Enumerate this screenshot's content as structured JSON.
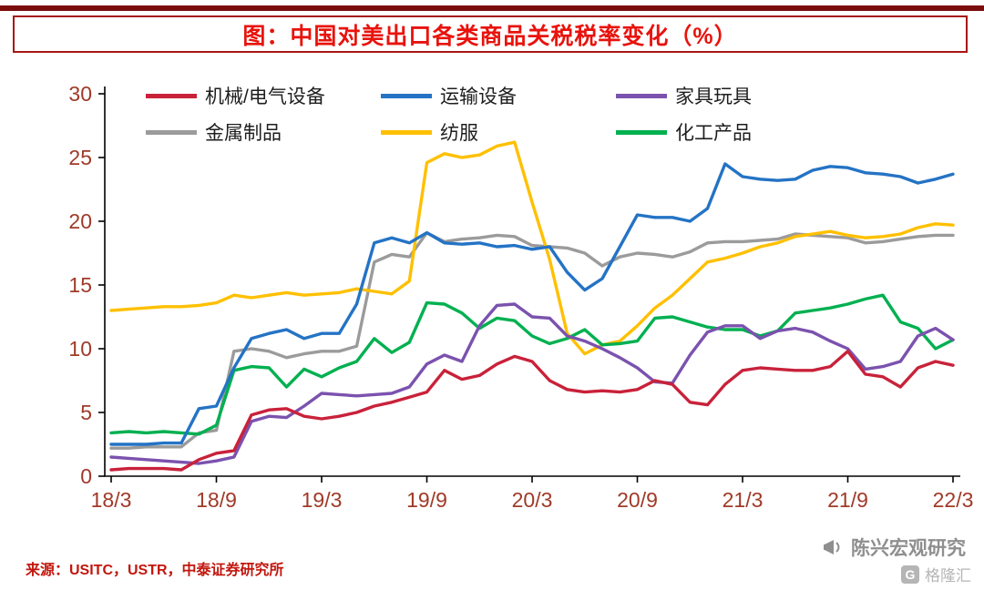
{
  "title": "图：中国对美出口各类商品关税税率变化（%）",
  "source_note": "来源：USITC，USTR，中泰证券研究所",
  "watermark": {
    "name": "陈兴宏观研究",
    "logo_letter": "G",
    "logo_text": "格隆汇"
  },
  "colors": {
    "title_red": "#e8130c",
    "frame_red": "#a61613",
    "top_rule_maroon": "#7a0c0c",
    "axis_text": "#a03a28",
    "source_text": "#c2170e",
    "watermark_gray": "#8f8f8f"
  },
  "chart_data": {
    "type": "line",
    "x": [
      "18/3",
      "18/4",
      "18/5",
      "18/6",
      "18/7",
      "18/8",
      "18/9",
      "18/10",
      "18/11",
      "18/12",
      "19/1",
      "19/2",
      "19/3",
      "19/4",
      "19/5",
      "19/6",
      "19/7",
      "19/8",
      "19/9",
      "19/10",
      "19/11",
      "19/12",
      "20/1",
      "20/2",
      "20/3",
      "20/4",
      "20/5",
      "20/6",
      "20/7",
      "20/8",
      "20/9",
      "20/10",
      "20/11",
      "20/12",
      "21/1",
      "21/2",
      "21/3",
      "21/4",
      "21/5",
      "21/6",
      "21/7",
      "21/8",
      "21/9",
      "21/10",
      "21/11",
      "21/12",
      "22/1",
      "22/2",
      "22/3"
    ],
    "x_ticks": [
      "18/3",
      "18/9",
      "19/3",
      "19/9",
      "20/3",
      "20/9",
      "21/3",
      "21/9",
      "22/3"
    ],
    "y_ticks": [
      0,
      5,
      10,
      15,
      20,
      25,
      30
    ],
    "ylim": [
      0,
      30
    ],
    "grid": false,
    "legend_position": "top",
    "legend_rows": [
      [
        0,
        1,
        2
      ],
      [
        3,
        4,
        5
      ]
    ],
    "draw_order": [
      3,
      4,
      5,
      2,
      1,
      0
    ],
    "series": [
      {
        "name": "机械/电气设备",
        "color": "#c9213a",
        "values": [
          0.5,
          0.6,
          0.6,
          0.6,
          0.5,
          1.3,
          1.8,
          2.0,
          4.8,
          5.2,
          5.3,
          4.7,
          4.5,
          4.7,
          5.0,
          5.5,
          5.8,
          6.2,
          6.6,
          8.3,
          7.6,
          7.9,
          8.8,
          9.4,
          9.0,
          7.5,
          6.8,
          6.6,
          6.7,
          6.6,
          6.8,
          7.5,
          7.2,
          5.8,
          5.6,
          7.2,
          8.3,
          8.5,
          8.4,
          8.3,
          8.3,
          8.6,
          9.8,
          8.0,
          7.8,
          7.0,
          8.5,
          9.0,
          8.7
        ]
      },
      {
        "name": "运输设备",
        "color": "#2473c5",
        "values": [
          2.5,
          2.5,
          2.5,
          2.6,
          2.6,
          5.3,
          5.5,
          8.5,
          10.8,
          11.2,
          11.5,
          10.8,
          11.2,
          11.2,
          13.5,
          18.3,
          18.7,
          18.3,
          19.1,
          18.3,
          18.2,
          18.3,
          18.0,
          18.1,
          17.8,
          18.0,
          16.0,
          14.6,
          15.5,
          18.0,
          20.5,
          20.3,
          20.3,
          20.0,
          21.0,
          24.5,
          23.5,
          23.3,
          23.2,
          23.3,
          24.0,
          24.3,
          24.2,
          23.8,
          23.7,
          23.5,
          23.0,
          23.3,
          23.7
        ]
      },
      {
        "name": "家具玩具",
        "color": "#7b52ae",
        "values": [
          1.5,
          1.4,
          1.3,
          1.2,
          1.1,
          1.0,
          1.2,
          1.5,
          4.3,
          4.7,
          4.6,
          5.5,
          6.5,
          6.4,
          6.3,
          6.4,
          6.5,
          7.0,
          8.8,
          9.5,
          9.0,
          11.8,
          13.4,
          13.5,
          12.5,
          12.4,
          11.0,
          10.6,
          10.0,
          9.3,
          8.5,
          7.4,
          7.3,
          9.5,
          11.3,
          11.8,
          11.8,
          10.8,
          11.4,
          11.6,
          11.3,
          10.6,
          10.0,
          8.4,
          8.6,
          9.0,
          11.0,
          11.6,
          10.7
        ]
      },
      {
        "name": "金属制品",
        "color": "#9b9b9b",
        "values": [
          2.2,
          2.2,
          2.3,
          2.3,
          2.3,
          3.4,
          3.6,
          9.8,
          10.0,
          9.8,
          9.3,
          9.6,
          9.8,
          9.8,
          10.2,
          16.8,
          17.4,
          17.2,
          19.1,
          18.4,
          18.6,
          18.7,
          18.9,
          18.8,
          18.1,
          18.0,
          17.9,
          17.5,
          16.5,
          17.2,
          17.5,
          17.4,
          17.2,
          17.6,
          18.3,
          18.4,
          18.4,
          18.5,
          18.6,
          19.0,
          18.9,
          18.8,
          18.7,
          18.3,
          18.4,
          18.6,
          18.8,
          18.9,
          18.9
        ]
      },
      {
        "name": "纺服",
        "color": "#ffc000",
        "values": [
          13.0,
          13.1,
          13.2,
          13.3,
          13.3,
          13.4,
          13.6,
          14.2,
          14.0,
          14.2,
          14.4,
          14.2,
          14.3,
          14.4,
          14.7,
          14.5,
          14.3,
          15.3,
          24.6,
          25.3,
          25.0,
          25.2,
          25.9,
          26.2,
          21.5,
          17.0,
          11.2,
          9.6,
          10.3,
          10.6,
          11.8,
          13.2,
          14.2,
          15.5,
          16.8,
          17.1,
          17.5,
          18.0,
          18.3,
          18.8,
          19.0,
          19.2,
          18.9,
          18.7,
          18.8,
          19.0,
          19.5,
          19.8,
          19.7
        ]
      },
      {
        "name": "化工产品",
        "color": "#00b050",
        "values": [
          3.4,
          3.5,
          3.4,
          3.5,
          3.4,
          3.3,
          4.0,
          8.3,
          8.6,
          8.5,
          7.0,
          8.4,
          7.8,
          8.5,
          9.0,
          10.8,
          9.7,
          10.5,
          13.6,
          13.5,
          12.8,
          11.6,
          12.4,
          12.2,
          11.0,
          10.4,
          10.8,
          11.5,
          10.3,
          10.4,
          10.6,
          12.4,
          12.5,
          12.1,
          11.7,
          11.5,
          11.5,
          11.0,
          11.4,
          12.8,
          13.0,
          13.2,
          13.5,
          13.9,
          14.2,
          12.1,
          11.6,
          10.0,
          10.7
        ]
      }
    ]
  }
}
